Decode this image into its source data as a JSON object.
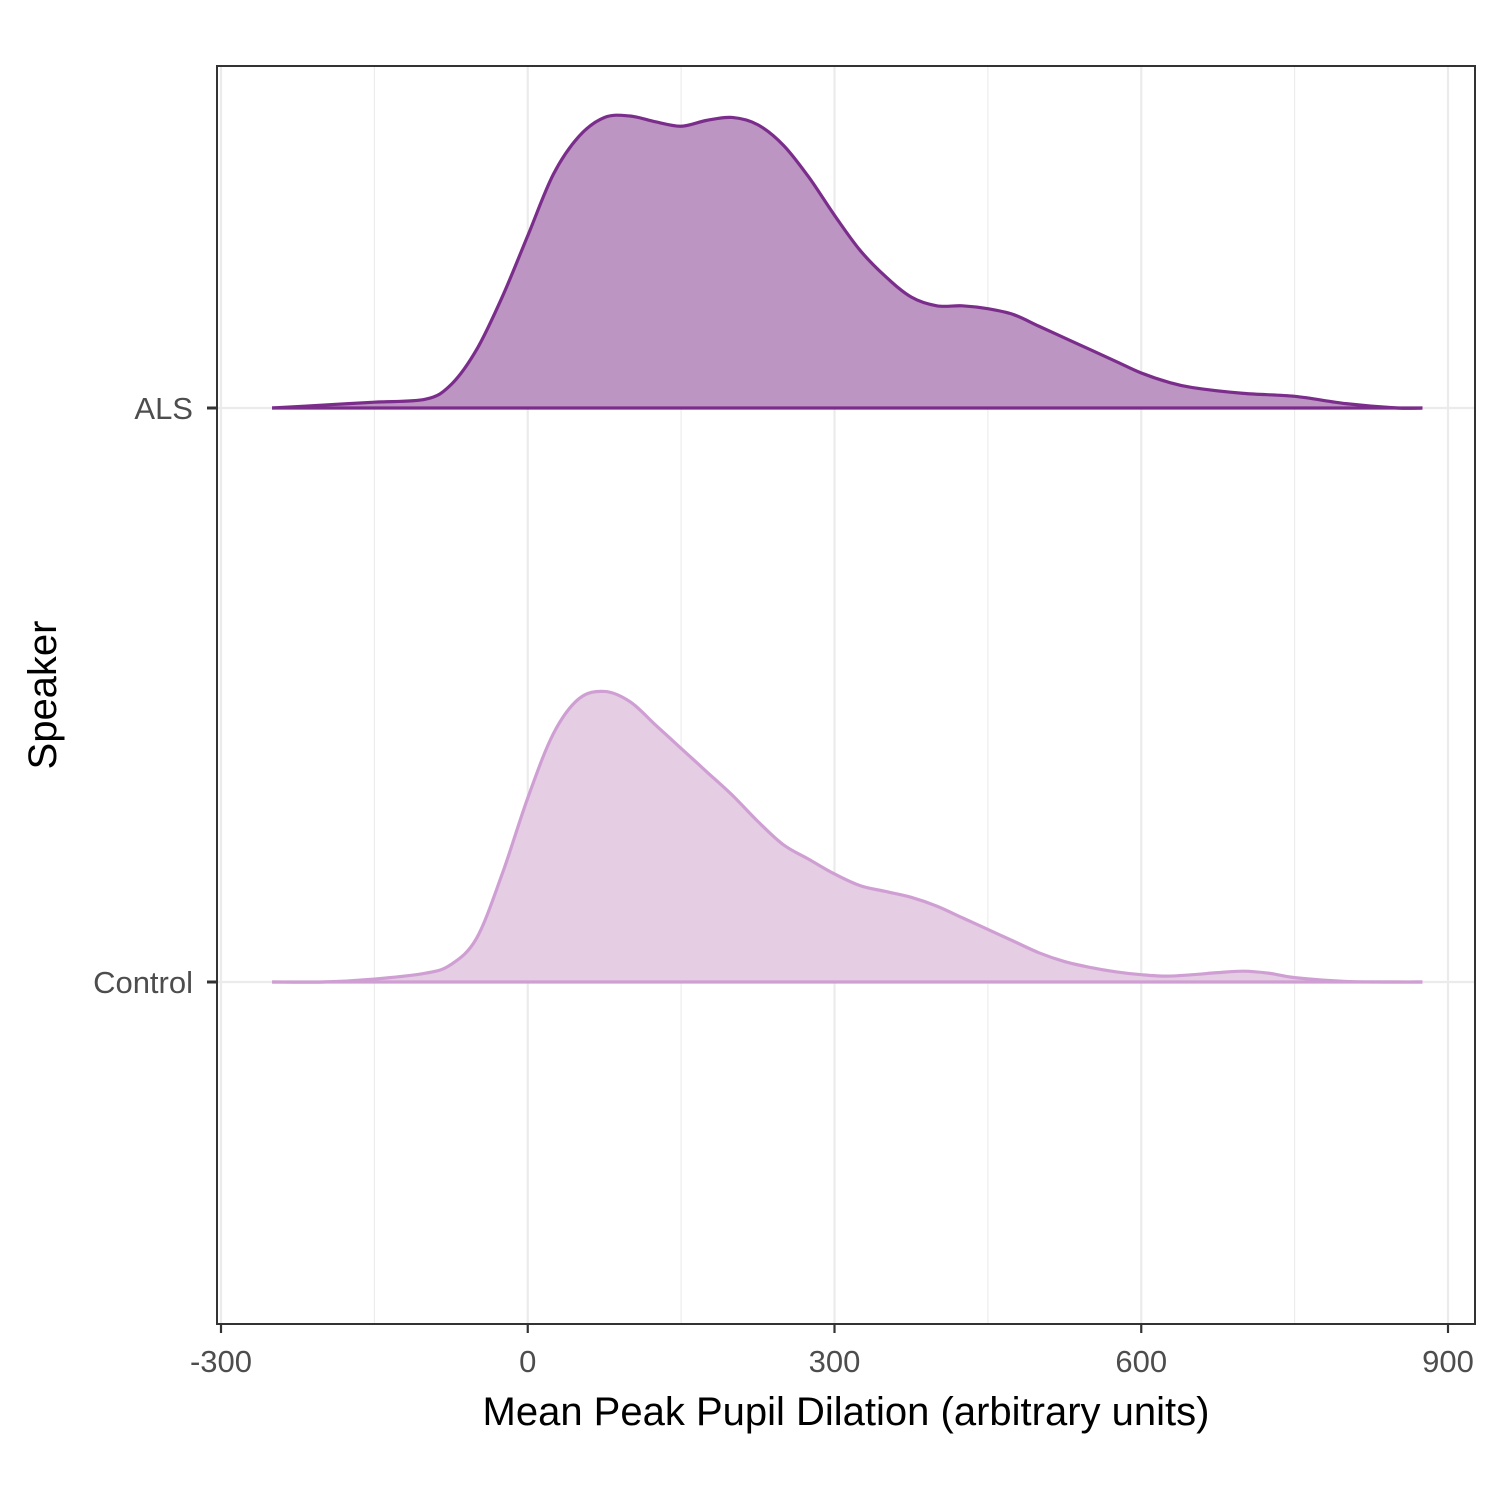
{
  "chart_data": {
    "type": "area",
    "subtype": "ridgeline-density",
    "title": "",
    "xlabel": "Mean Peak Pupil Dilation (arbitrary units)",
    "ylabel": "Speaker",
    "xlim": [
      -300,
      900
    ],
    "x_ticks": [
      "-300",
      "0",
      "300",
      "600",
      "900"
    ],
    "y_categories": [
      "ALS",
      "Control"
    ],
    "grid": true,
    "legend": "none",
    "series": [
      {
        "name": "ALS",
        "color": "#7b2d8b",
        "fill": "#bd95c2",
        "x": [
          -250,
          -200,
          -150,
          -100,
          -75,
          -50,
          -25,
          0,
          25,
          50,
          75,
          100,
          125,
          150,
          175,
          200,
          225,
          250,
          275,
          300,
          325,
          350,
          375,
          400,
          425,
          450,
          475,
          500,
          525,
          550,
          575,
          600,
          625,
          650,
          700,
          750,
          800,
          850,
          875
        ],
        "y": [
          0.0,
          0.01,
          0.02,
          0.03,
          0.08,
          0.2,
          0.38,
          0.59,
          0.8,
          0.93,
          0.995,
          1.0,
          0.98,
          0.965,
          0.985,
          0.995,
          0.97,
          0.9,
          0.79,
          0.66,
          0.54,
          0.45,
          0.38,
          0.35,
          0.35,
          0.34,
          0.32,
          0.28,
          0.24,
          0.2,
          0.16,
          0.12,
          0.09,
          0.07,
          0.05,
          0.04,
          0.015,
          0.0,
          0.0
        ]
      },
      {
        "name": "Control",
        "color": "#cf9fd3",
        "fill": "#e5cde4",
        "x": [
          -250,
          -200,
          -150,
          -100,
          -75,
          -50,
          -25,
          0,
          25,
          50,
          75,
          100,
          125,
          150,
          175,
          200,
          225,
          250,
          275,
          300,
          325,
          350,
          375,
          400,
          425,
          450,
          475,
          500,
          525,
          550,
          575,
          600,
          625,
          650,
          675,
          700,
          725,
          750,
          800,
          850,
          875
        ],
        "y": [
          0.0,
          0.0,
          0.01,
          0.03,
          0.06,
          0.15,
          0.37,
          0.63,
          0.85,
          0.97,
          0.995,
          0.96,
          0.88,
          0.8,
          0.72,
          0.64,
          0.55,
          0.47,
          0.42,
          0.37,
          0.33,
          0.31,
          0.29,
          0.26,
          0.22,
          0.18,
          0.14,
          0.1,
          0.07,
          0.05,
          0.035,
          0.025,
          0.02,
          0.025,
          0.032,
          0.037,
          0.03,
          0.015,
          0.002,
          0.0,
          0.0
        ]
      }
    ]
  }
}
